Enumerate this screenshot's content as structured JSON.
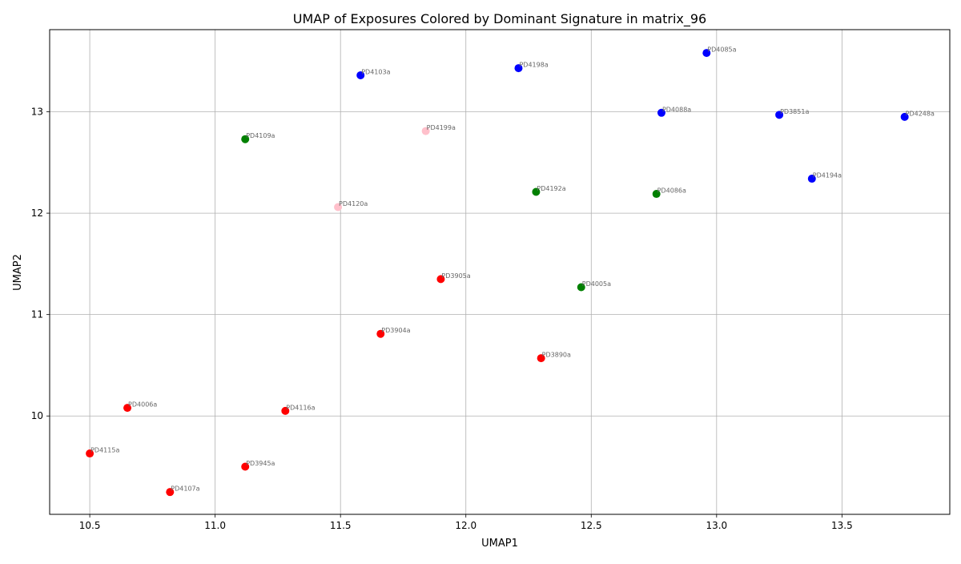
{
  "chart_data": {
    "type": "scatter",
    "title": "UMAP of Exposures Colored by Dominant Signature in matrix_96",
    "xlabel": "UMAP1",
    "ylabel": "UMAP2",
    "xlim": [
      10.34,
      13.93
    ],
    "ylim": [
      9.03,
      13.81
    ],
    "xticks": [
      10.5,
      11.0,
      11.5,
      12.0,
      12.5,
      13.0,
      13.5
    ],
    "xtick_labels": [
      "10.5",
      "11.0",
      "11.5",
      "12.0",
      "12.5",
      "13.0",
      "13.5"
    ],
    "yticks": [
      10,
      11,
      12,
      13
    ],
    "ytick_labels": [
      "10",
      "11",
      "12",
      "13"
    ],
    "grid": true,
    "colors": {
      "red": "#ff0000",
      "blue": "#0000ff",
      "green": "#008000",
      "pink": "#ffc0cb"
    },
    "points": [
      {
        "label": "PD4085a",
        "x": 12.96,
        "y": 13.58,
        "color": "blue"
      },
      {
        "label": "PD4198a",
        "x": 12.21,
        "y": 13.43,
        "color": "blue"
      },
      {
        "label": "PD4103a",
        "x": 11.58,
        "y": 13.36,
        "color": "blue"
      },
      {
        "label": "PD4088a",
        "x": 12.78,
        "y": 12.99,
        "color": "blue"
      },
      {
        "label": "PD3851a",
        "x": 13.25,
        "y": 12.97,
        "color": "blue"
      },
      {
        "label": "PD4248a",
        "x": 13.75,
        "y": 12.95,
        "color": "blue"
      },
      {
        "label": "PD4194a",
        "x": 13.38,
        "y": 12.34,
        "color": "blue"
      },
      {
        "label": "PD4199a",
        "x": 11.84,
        "y": 12.81,
        "color": "pink"
      },
      {
        "label": "PD4120a",
        "x": 11.49,
        "y": 12.06,
        "color": "pink"
      },
      {
        "label": "PD4109a",
        "x": 11.12,
        "y": 12.73,
        "color": "green"
      },
      {
        "label": "PD4192a",
        "x": 12.28,
        "y": 12.21,
        "color": "green"
      },
      {
        "label": "PD4086a",
        "x": 12.76,
        "y": 12.19,
        "color": "green"
      },
      {
        "label": "PD4005a",
        "x": 12.46,
        "y": 11.27,
        "color": "green"
      },
      {
        "label": "PD3905a",
        "x": 11.9,
        "y": 11.35,
        "color": "red"
      },
      {
        "label": "PD3904a",
        "x": 11.66,
        "y": 10.81,
        "color": "red"
      },
      {
        "label": "PD3890a",
        "x": 12.3,
        "y": 10.57,
        "color": "red"
      },
      {
        "label": "PD4006a",
        "x": 10.65,
        "y": 10.08,
        "color": "red"
      },
      {
        "label": "PD4116a",
        "x": 11.28,
        "y": 10.05,
        "color": "red"
      },
      {
        "label": "PD4115a",
        "x": 10.5,
        "y": 9.63,
        "color": "red"
      },
      {
        "label": "PD3945a",
        "x": 11.12,
        "y": 9.5,
        "color": "red"
      },
      {
        "label": "PD4107a",
        "x": 10.82,
        "y": 9.25,
        "color": "red"
      }
    ]
  }
}
